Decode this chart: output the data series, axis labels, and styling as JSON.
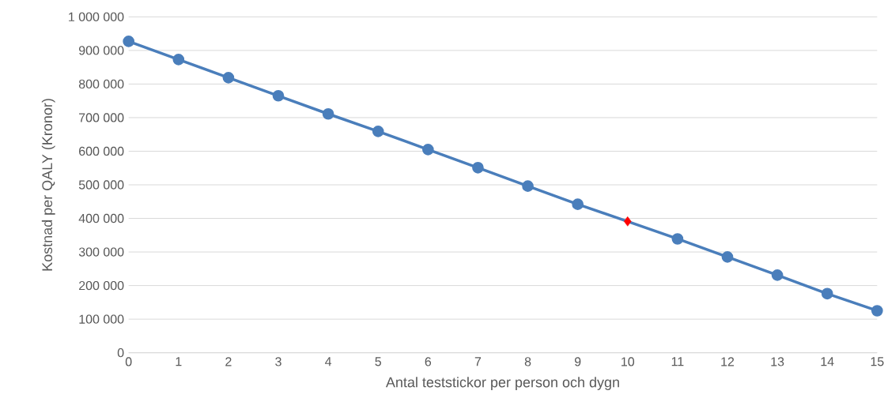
{
  "chart_data": {
    "type": "line",
    "xlabel": "Antal teststickor per person och dygn",
    "ylabel": "Kostnad per QALY (Kronor)",
    "x": [
      0,
      1,
      2,
      3,
      4,
      5,
      6,
      7,
      8,
      9,
      10,
      11,
      12,
      13,
      14,
      15
    ],
    "series": [
      {
        "color": "#4a7ebb",
        "marker": "circle",
        "values": [
          927000,
          873000,
          819000,
          765000,
          711000,
          659000,
          605000,
          551000,
          496000,
          442000,
          391000,
          339000,
          285000,
          231000,
          176000,
          125000
        ]
      },
      {
        "type": "scatter",
        "color": "#ff0000",
        "marker": "diamond",
        "x": [
          10
        ],
        "values": [
          391000
        ]
      }
    ],
    "xlim": [
      0,
      15
    ],
    "xticks": [
      0,
      1,
      2,
      3,
      4,
      5,
      6,
      7,
      8,
      9,
      10,
      11,
      12,
      13,
      14,
      15
    ],
    "ylim": [
      0,
      1000000
    ],
    "yticks": [
      {
        "value": 0,
        "label": "0"
      },
      {
        "value": 100000,
        "label": "100 000"
      },
      {
        "value": 200000,
        "label": "200 000"
      },
      {
        "value": 300000,
        "label": "300 000"
      },
      {
        "value": 400000,
        "label": "400 000"
      },
      {
        "value": 500000,
        "label": "500 000"
      },
      {
        "value": 600000,
        "label": "600 000"
      },
      {
        "value": 700000,
        "label": "700 000"
      },
      {
        "value": 800000,
        "label": "800 000"
      },
      {
        "value": 900000,
        "label": "900 000"
      },
      {
        "value": 1000000,
        "label": "1 000 000"
      }
    ],
    "grid": "y",
    "legend": false
  }
}
